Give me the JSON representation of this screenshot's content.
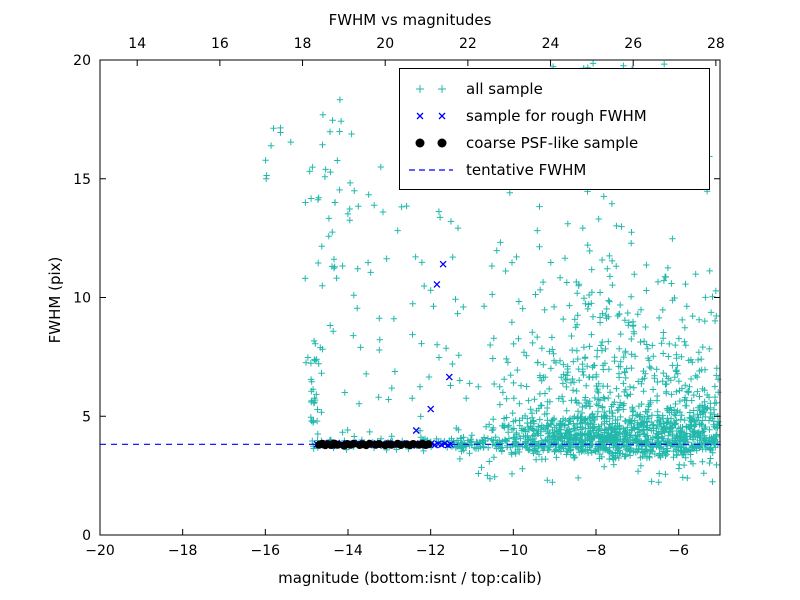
{
  "chart_data": {
    "type": "scatter",
    "title": "FWHM vs magnitudes",
    "xlabel": "magnitude (bottom:isnt / top:calib)",
    "ylabel": "FWHM (pix)",
    "grid": false,
    "legend_position": "upper right",
    "seed": 20240915,
    "x_bottom": {
      "min": -20,
      "max": -5,
      "ticks": [
        -20,
        -18,
        -16,
        -14,
        -12,
        -10,
        -8,
        -6
      ]
    },
    "x_top": {
      "min": 13.1,
      "max": 28.1,
      "ticks": [
        14,
        16,
        18,
        20,
        22,
        24,
        26,
        28
      ]
    },
    "y": {
      "min": 0,
      "max": 20,
      "ticks": [
        0,
        5,
        10,
        15,
        20
      ]
    },
    "series": [
      {
        "name": "all sample",
        "marker": "plus",
        "color": "#22b8ab",
        "clusters": [
          {
            "count": 420,
            "x": {
              "dist": "normal",
              "mean": -8.0,
              "sd": 1.15,
              "min": -11.2,
              "max": -5.05
            },
            "y": {
              "dist": "lognormal",
              "mu": 1.8,
              "sigma": 0.45,
              "min": 4.3,
              "max": 19.8
            }
          },
          {
            "count": 700,
            "x": {
              "dist": "normal",
              "mean": -7.5,
              "sd": 1.5,
              "min": -11.5,
              "max": -5.05
            },
            "y": {
              "dist": "normal",
              "mean": 4.15,
              "sd": 0.55,
              "min": 3.2,
              "max": 6.2
            }
          },
          {
            "count": 300,
            "x": {
              "dist": "uniform",
              "min": -11.4,
              "max": -5.05
            },
            "y": {
              "dist": "normal",
              "mean": 3.85,
              "sd": 0.18,
              "min": 3.4,
              "max": 4.4
            }
          },
          {
            "count": 80,
            "x": {
              "dist": "uniform",
              "min": -15.0,
              "max": -11.2
            },
            "y": {
              "dist": "normal",
              "mean": 3.85,
              "sd": 0.14,
              "min": 3.5,
              "max": 4.3
            }
          },
          {
            "count": 90,
            "x": {
              "dist": "uniform",
              "min": -15.1,
              "max": -11.2
            },
            "y": {
              "dist": "uniform",
              "min": 4.3,
              "max": 15.5
            }
          },
          {
            "count": 26,
            "x": {
              "dist": "normal",
              "mean": -14.78,
              "sd": 0.07,
              "min": -14.98,
              "max": -14.55
            },
            "y": {
              "dist": "uniform",
              "min": 4.1,
              "max": 8.4
            }
          },
          {
            "count": 16,
            "x": {
              "dist": "uniform",
              "min": -14.7,
              "max": -13.9
            },
            "y": {
              "dist": "uniform",
              "min": 13.2,
              "max": 18.7
            }
          },
          {
            "count": 8,
            "x": {
              "dist": "uniform",
              "min": -16.0,
              "max": -15.3
            },
            "y": {
              "dist": "uniform",
              "min": 14.5,
              "max": 17.2
            }
          },
          {
            "count": 190,
            "x": {
              "dist": "uniform",
              "min": -6.4,
              "max": -5.02
            },
            "y": {
              "dist": "lognormal",
              "mu": 1.6,
              "sigma": 0.35,
              "min": 3.4,
              "max": 12.0
            }
          },
          {
            "count": 70,
            "x": {
              "dist": "normal",
              "mean": -8.2,
              "sd": 1.0,
              "min": -10.8,
              "max": -5.1
            },
            "y": {
              "dist": "uniform",
              "min": 15.0,
              "max": 19.9
            }
          },
          {
            "count": 45,
            "x": {
              "dist": "uniform",
              "min": -11.0,
              "max": -5.05
            },
            "y": {
              "dist": "uniform",
              "min": 2.2,
              "max": 3.4
            }
          }
        ]
      },
      {
        "name": "sample for rough FWHM",
        "marker": "x",
        "color": "#0000ff",
        "points": [
          [
            -14.75,
            3.82
          ],
          [
            -14.68,
            3.78
          ],
          [
            -14.6,
            3.85
          ],
          [
            -14.52,
            3.8
          ],
          [
            -14.45,
            3.88
          ],
          [
            -14.38,
            3.76
          ],
          [
            -14.3,
            3.83
          ],
          [
            -14.22,
            3.79
          ],
          [
            -14.15,
            3.86
          ],
          [
            -14.05,
            3.81
          ],
          [
            -13.97,
            3.77
          ],
          [
            -13.9,
            3.84
          ],
          [
            -13.82,
            3.8
          ],
          [
            -13.74,
            3.88
          ],
          [
            -13.66,
            3.78
          ],
          [
            -13.58,
            3.83
          ],
          [
            -13.5,
            3.79
          ],
          [
            -13.42,
            3.86
          ],
          [
            -13.34,
            3.81
          ],
          [
            -13.26,
            3.77
          ],
          [
            -13.18,
            3.84
          ],
          [
            -13.1,
            3.8
          ],
          [
            -13.02,
            3.87
          ],
          [
            -12.94,
            3.78
          ],
          [
            -12.86,
            3.83
          ],
          [
            -12.78,
            3.8
          ],
          [
            -12.7,
            3.86
          ],
          [
            -12.62,
            3.79
          ],
          [
            -12.54,
            3.83
          ],
          [
            -12.46,
            3.77
          ],
          [
            -12.38,
            3.85
          ],
          [
            -12.3,
            3.8
          ],
          [
            -12.22,
            3.84
          ],
          [
            -12.14,
            3.78
          ],
          [
            -12.06,
            3.82
          ],
          [
            -11.98,
            3.86
          ],
          [
            -11.9,
            3.79
          ],
          [
            -11.82,
            3.83
          ],
          [
            -11.74,
            3.8
          ],
          [
            -11.66,
            3.85
          ],
          [
            -11.58,
            3.78
          ],
          [
            -11.52,
            3.82
          ],
          [
            -11.7,
            11.4
          ],
          [
            -11.85,
            10.55
          ],
          [
            -11.55,
            6.65
          ],
          [
            -12.0,
            5.3
          ],
          [
            -12.35,
            4.4
          ]
        ]
      },
      {
        "name": "coarse PSF-like sample",
        "marker": "circle",
        "color": "#000000",
        "points": [
          [
            -14.7,
            3.8
          ],
          [
            -14.62,
            3.84
          ],
          [
            -14.55,
            3.78
          ],
          [
            -14.48,
            3.82
          ],
          [
            -14.4,
            3.79
          ],
          [
            -14.33,
            3.85
          ],
          [
            -14.25,
            3.8
          ],
          [
            -14.1,
            3.77
          ],
          [
            -14.02,
            3.83
          ],
          [
            -13.95,
            3.8
          ],
          [
            -13.87,
            3.84
          ],
          [
            -13.72,
            3.79
          ],
          [
            -13.64,
            3.82
          ],
          [
            -13.56,
            3.78
          ],
          [
            -13.48,
            3.84
          ],
          [
            -13.33,
            3.8
          ],
          [
            -13.25,
            3.83
          ],
          [
            -13.1,
            3.78
          ],
          [
            -13.02,
            3.82
          ],
          [
            -12.95,
            3.8
          ],
          [
            -12.8,
            3.84
          ],
          [
            -12.72,
            3.79
          ],
          [
            -12.58,
            3.82
          ],
          [
            -12.5,
            3.78
          ],
          [
            -12.42,
            3.83
          ],
          [
            -12.28,
            3.8
          ],
          [
            -12.2,
            3.84
          ],
          [
            -12.12,
            3.79
          ],
          [
            -12.05,
            3.82
          ]
        ]
      },
      {
        "name": "tentative FWHM",
        "type": "hline",
        "linestyle": "dashed",
        "color": "#0000ff",
        "y": 3.82,
        "x_start": -20,
        "x_end": -5
      }
    ]
  }
}
